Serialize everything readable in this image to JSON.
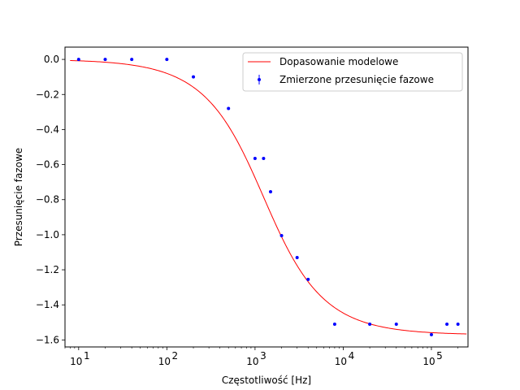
{
  "chart_data": {
    "type": "scatter",
    "xscale": "log",
    "xlim": [
      7,
      260000
    ],
    "ylim": [
      -1.64,
      0.07
    ],
    "xlabel": "Częstotliwość [Hz]",
    "ylabel": "Przesunięcie fazowe",
    "x_ticks": [
      {
        "value": 10,
        "base": "10",
        "exp": "1"
      },
      {
        "value": 100,
        "base": "10",
        "exp": "2"
      },
      {
        "value": 1000,
        "base": "10",
        "exp": "3"
      },
      {
        "value": 10000,
        "base": "10",
        "exp": "4"
      },
      {
        "value": 100000,
        "base": "10",
        "exp": "5"
      }
    ],
    "y_ticks": [
      {
        "value": 0.0,
        "label": "0.0"
      },
      {
        "value": -0.2,
        "label": "−0.2"
      },
      {
        "value": -0.4,
        "label": "−0.4"
      },
      {
        "value": -0.6,
        "label": "−0.6"
      },
      {
        "value": -0.8,
        "label": "−0.8"
      },
      {
        "value": -1.0,
        "label": "−1.0"
      },
      {
        "value": -1.2,
        "label": "−1.2"
      },
      {
        "value": -1.4,
        "label": "−1.4"
      },
      {
        "value": -1.6,
        "label": "−1.6"
      }
    ],
    "grid": false,
    "legend_position": "top-right",
    "series": [
      {
        "name": "Dopasowanie modelowe",
        "kind": "line",
        "color": "#ff0000",
        "model": "arctan",
        "cutoff_hz": 1250,
        "x_range": [
          8,
          250000
        ]
      },
      {
        "name": "Zmierzone przesunięcie fazowe",
        "kind": "errorbar",
        "color": "#0000ff",
        "x": [
          10,
          20,
          40,
          100,
          200,
          500,
          1000,
          1250,
          1500,
          2000,
          3000,
          4000,
          8000,
          20000,
          40000,
          100000,
          150000,
          200000
        ],
        "y": [
          0.0,
          0.0,
          0.0,
          0.0,
          -0.1,
          -0.28,
          -0.565,
          -0.565,
          -0.755,
          -1.005,
          -1.13,
          -1.255,
          -1.51,
          -1.51,
          -1.51,
          -1.57,
          -1.51,
          -1.51
        ]
      }
    ]
  }
}
